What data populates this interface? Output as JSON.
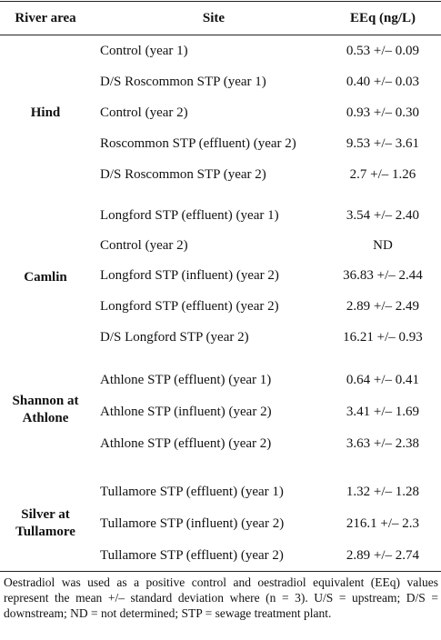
{
  "headers": {
    "river_area": "River area",
    "site": "Site",
    "eeq": "EEq (ng/L)"
  },
  "groups": [
    {
      "area": "Hind",
      "rows": [
        {
          "site": "Control (year 1)",
          "eeq": "0.53 +/– 0.09"
        },
        {
          "site": "D/S Roscommon STP (year 1)",
          "eeq": "0.40 +/– 0.03"
        },
        {
          "site": "Control (year 2)",
          "eeq": "0.93 +/– 0.30"
        },
        {
          "site": "Roscommon STP (effluent) (year 2)",
          "eeq": "9.53 +/– 3.61"
        },
        {
          "site": "D/S Roscommon STP (year 2)",
          "eeq": "2.7 +/– 1.26"
        }
      ]
    },
    {
      "area": "Camlin",
      "rows": [
        {
          "site": "Longford STP (effluent) (year 1)",
          "eeq": "3.54 +/– 2.40"
        },
        {
          "site": "Control (year 2)",
          "eeq": "ND"
        },
        {
          "site": "Longford STP (influent) (year 2)",
          "eeq": "36.83 +/– 2.44"
        },
        {
          "site": "Longford STP (effluent) (year 2)",
          "eeq": "2.89 +/– 2.49"
        },
        {
          "site": "D/S Longford STP (year 2)",
          "eeq": "16.21 +/– 0.93"
        }
      ]
    },
    {
      "area": "Shannon at Athlone",
      "rows": [
        {
          "site": "Athlone STP (effluent) (year 1)",
          "eeq": "0.64 +/– 0.41"
        },
        {
          "site": "Athlone STP (influent) (year 2)",
          "eeq": "3.41 +/– 1.69"
        },
        {
          "site": "Athlone STP (effluent) (year 2)",
          "eeq": "3.63 +/– 2.38"
        }
      ]
    },
    {
      "area": "Silver at Tullamore",
      "rows": [
        {
          "site": "Tullamore STP (effluent) (year 1)",
          "eeq": "1.32 +/– 1.28"
        },
        {
          "site": "Tullamore STP (influent) (year 2)",
          "eeq": "216.1 +/– 2.3"
        },
        {
          "site": "Tullamore STP (effluent) (year 2)",
          "eeq": "2.89 +/– 2.74"
        }
      ]
    }
  ],
  "footnote": "Oestradiol was used as a positive control and oestradiol equivalent (EEq) values represent the mean +/– standard deviation where (n = 3). U/S = upstream; D/S = downstream; ND = not determined; STP = sewage treatment plant."
}
